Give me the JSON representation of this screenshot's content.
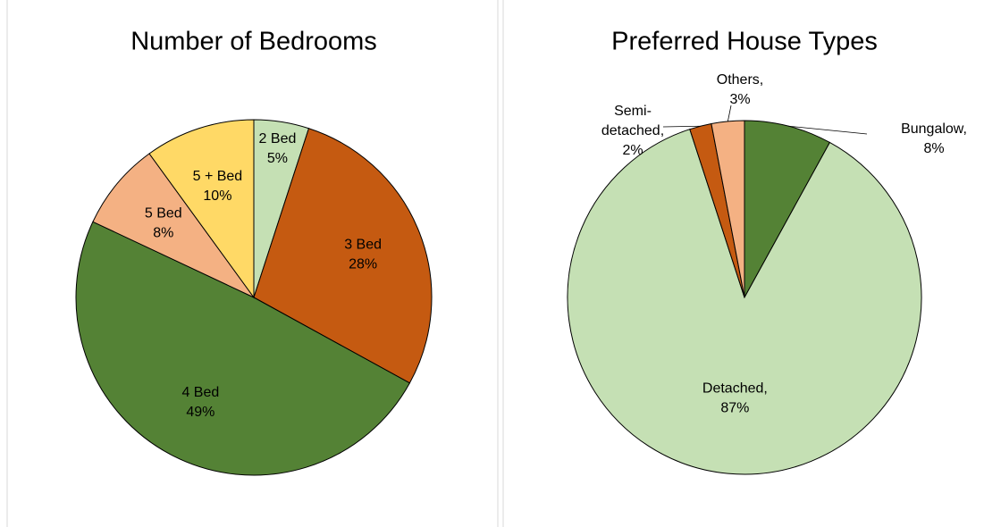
{
  "chart_data": [
    {
      "type": "pie",
      "title": "Number of Bedrooms",
      "categories": [
        "2 Bed",
        "3 Bed",
        "4 Bed",
        "5 Bed",
        "5 + Bed"
      ],
      "values": [
        5,
        28,
        49,
        8,
        10
      ],
      "value_labels": [
        "5%",
        "28%",
        "49%",
        "8%",
        "10%"
      ],
      "colors": [
        "#c5e0b4",
        "#c55a11",
        "#548235",
        "#f4b183",
        "#ffd966"
      ]
    },
    {
      "type": "pie",
      "title": "Preferred House Types",
      "categories": [
        "Bungalow,",
        "Detached,",
        "Semi-detached,",
        "Others,"
      ],
      "values": [
        8,
        87,
        2,
        3
      ],
      "value_labels": [
        "8%",
        "87%",
        "2%",
        "3%"
      ],
      "colors": [
        "#548235",
        "#c5e0b4",
        "#c55a11",
        "#f4b183"
      ]
    }
  ]
}
